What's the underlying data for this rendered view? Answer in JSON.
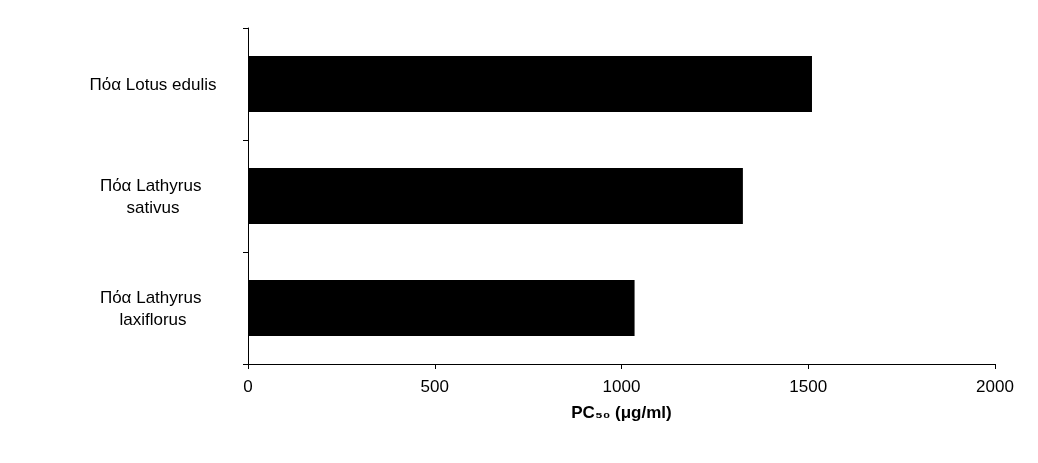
{
  "chart_data": {
    "type": "bar",
    "orientation": "horizontal",
    "xlabel": "PC₅₀ (μg/ml)",
    "categories": [
      "Πόα Lotus edulis",
      "Πόα Lathyrus sativus",
      "Πόα Lathyrus laxiflorus"
    ],
    "values": [
      1510,
      1325,
      1035
    ],
    "color": "#000000",
    "xlim": [
      0,
      2000
    ],
    "xticks": [
      0,
      500,
      1000,
      1500,
      2000
    ],
    "grid": false
  }
}
